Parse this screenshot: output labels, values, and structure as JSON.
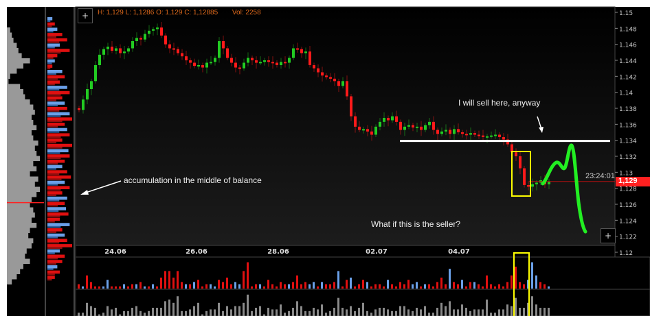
{
  "header": {
    "ohlc_text": "H: 1,129 L: 1,1286 O: 1,129 C: 1,12885",
    "volume_text": "Vol: 2258",
    "color": "#e06a1c"
  },
  "controls": {
    "add_top": "+",
    "add_bottom": "+"
  },
  "price_label": {
    "value": "1,129",
    "time": "23:24:01",
    "color": "#ff2020"
  },
  "annotations": {
    "accumulation": "accumulation in the middle of balance",
    "sell_here": "I will sell here, anyway",
    "seller": "What if this is the seller?",
    "resistance_price": 1.134,
    "line_color": "#ffffff",
    "box_color": "#ffff00",
    "path_color": "#22ee22"
  },
  "colors": {
    "up": "#22cc22",
    "down": "#ff1a1a",
    "vol_up": "#6aa0e8",
    "vol_down": "#e01010",
    "profile": "#999999"
  },
  "chart_data": {
    "type": "candlestick",
    "ylim": [
      1.12,
      1.15
    ],
    "y_ticks": [
      "1.15",
      "1.148",
      "1.146",
      "1.144",
      "1.142",
      "1.14",
      "1.138",
      "1.136",
      "1.134",
      "1.132",
      "1.13",
      "1.128",
      "1.126",
      "1.124",
      "1.122",
      "1.12"
    ],
    "x_ticks": [
      "24.06",
      "26.06",
      "28.06",
      "02.07",
      "04.07"
    ],
    "close": [
      1.1378,
      1.1391,
      1.1404,
      1.1414,
      1.1434,
      1.1447,
      1.1454,
      1.1457,
      1.1452,
      1.1455,
      1.1449,
      1.1451,
      1.1455,
      1.1464,
      1.1468,
      1.1466,
      1.1473,
      1.1477,
      1.1479,
      1.1481,
      1.1471,
      1.146,
      1.1455,
      1.1454,
      1.1449,
      1.1445,
      1.144,
      1.1437,
      1.1433,
      1.1434,
      1.1431,
      1.1437,
      1.1438,
      1.1443,
      1.1464,
      1.1455,
      1.1443,
      1.1437,
      1.1431,
      1.143,
      1.1437,
      1.1443,
      1.144,
      1.1437,
      1.1438,
      1.144,
      1.1438,
      1.1437,
      1.1434,
      1.1438,
      1.1437,
      1.1443,
      1.1455,
      1.1454,
      1.1449,
      1.1451,
      1.1434,
      1.143,
      1.1425,
      1.1421,
      1.1419,
      1.1417,
      1.1414,
      1.1408,
      1.1414,
      1.1395,
      1.137,
      1.1357,
      1.1353,
      1.1354,
      1.1351,
      1.1347,
      1.1357,
      1.1363,
      1.1368,
      1.1365,
      1.137,
      1.1363,
      1.1353,
      1.1357,
      1.1359,
      1.1356,
      1.1357,
      1.1353,
      1.1359,
      1.1363,
      1.1353,
      1.1348,
      1.1351,
      1.1353,
      1.1348,
      1.1354,
      1.135,
      1.1348,
      1.1347,
      1.1349,
      1.1347,
      1.1346,
      1.1344,
      1.1345,
      1.1346,
      1.1347,
      1.1344,
      1.1341,
      1.1335,
      1.1325,
      1.132,
      1.1305,
      1.1284,
      1.1282,
      1.1285,
      1.1287,
      1.129,
      1.1285,
      1.12885
    ],
    "volume": [
      -2,
      1,
      -6,
      -3,
      -1,
      -1,
      1,
      4,
      -1,
      -1,
      -1,
      2,
      -1,
      -2,
      2,
      -3,
      1,
      -1,
      2,
      -1,
      -5,
      -8,
      -8,
      -5,
      -8,
      -3,
      2,
      -2,
      3,
      -4,
      -1,
      -2,
      2,
      1,
      -4,
      -3,
      -5,
      -2,
      3,
      2,
      -8,
      -12,
      -1,
      -2,
      2,
      -1,
      -4,
      -2,
      -1,
      -3,
      -2,
      2,
      -3,
      -6,
      -2,
      -3,
      2,
      3,
      -1,
      3,
      -2,
      -2,
      -3,
      8,
      -1,
      -4,
      5,
      -1,
      -2,
      -4,
      3,
      -1,
      -2,
      -2,
      -1,
      4,
      -2,
      -1,
      -3,
      -2,
      -4,
      2,
      3,
      -1,
      2,
      -2,
      -1,
      -3,
      -5,
      -2,
      9,
      -3,
      -2,
      4,
      -1,
      -3,
      3,
      -2,
      -1,
      -6,
      -2,
      -1,
      -2,
      -1,
      -3,
      -6,
      -10,
      -3,
      -2,
      4,
      12,
      6,
      -3,
      -2,
      1
    ],
    "profile": [
      0.1,
      0.15,
      0.2,
      0.3,
      0.35,
      0.45,
      0.7,
      0.5,
      0.3,
      0.1,
      0.05,
      0.4,
      0.5,
      0.55,
      0.7,
      0.8,
      0.85,
      0.75,
      0.8,
      0.9,
      0.75,
      0.8,
      0.95,
      0.85,
      0.9,
      1.0,
      0.8,
      0.9,
      0.7,
      0.95,
      0.85,
      1.0,
      0.9,
      0.75,
      0.7,
      0.8,
      0.85,
      0.75,
      0.9,
      0.7,
      0.65,
      0.8,
      0.75,
      0.6,
      0.55,
      0.7,
      0.5,
      0.4,
      0.3,
      0.15
    ],
    "delta_profile": [
      0.2,
      -0.3,
      0.4,
      -0.6,
      -0.8,
      0.5,
      -0.9,
      -0.4,
      0.3,
      -0.2,
      0.6,
      -0.7,
      -0.5,
      0.8,
      -0.9,
      -0.6,
      0.7,
      -0.8,
      0.9,
      -1.0,
      -0.7,
      0.8,
      -0.9,
      -0.6,
      -1.0,
      0.85,
      -0.9,
      -0.7,
      0.6,
      -0.8,
      -0.95,
      0.7,
      -0.9,
      -0.6,
      0.8,
      -0.7,
      0.75,
      -0.85,
      -0.5,
      0.9,
      -0.6,
      0.7,
      -0.8,
      -1.0,
      0.5,
      -0.7,
      -0.6,
      0.4,
      -0.5,
      -0.3
    ],
    "poc_price": 1.1262
  }
}
